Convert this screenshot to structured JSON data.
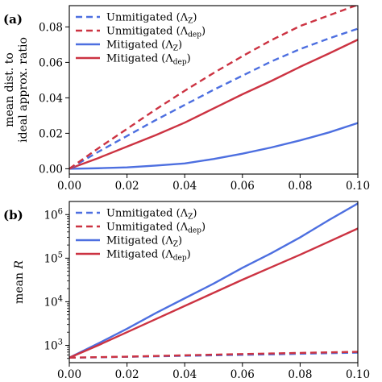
{
  "chart_data": [
    {
      "panel_label": "(a)",
      "type": "line",
      "ylabel_lines": [
        "mean dist. to",
        "ideal approx. ratio"
      ],
      "xlim": [
        0.0,
        0.1
      ],
      "ylim": [
        -0.003,
        0.092
      ],
      "yscale": "linear",
      "xticks": [
        "0.00",
        "0.02",
        "0.04",
        "0.06",
        "0.08",
        "0.10"
      ],
      "yticks": [
        {
          "value": 0.0,
          "label": "0.00"
        },
        {
          "value": 0.02,
          "label": "0.02"
        },
        {
          "value": 0.04,
          "label": "0.04"
        },
        {
          "value": 0.06,
          "label": "0.06"
        },
        {
          "value": 0.08,
          "label": "0.08"
        }
      ],
      "grid": false,
      "legend_position": "top-left",
      "x": [
        0.0,
        0.01,
        0.02,
        0.03,
        0.04,
        0.05,
        0.06,
        0.07,
        0.08,
        0.09,
        0.1
      ],
      "series": [
        {
          "name": "Unmitigated (Λ_Z)",
          "legend_main": "Unmitigated (Λ",
          "legend_sub": "Z",
          "color": "#4d6fe0",
          "dash": true,
          "values": [
            0.0,
            0.0095,
            0.0185,
            0.0275,
            0.036,
            0.0445,
            0.0525,
            0.0605,
            0.0675,
            0.0735,
            0.079
          ]
        },
        {
          "name": "Unmitigated (Λ_dep)",
          "legend_main": "Unmitigated (Λ",
          "legend_sub": "dep",
          "color": "#cc3342",
          "dash": true,
          "values": [
            0.0,
            0.0115,
            0.0225,
            0.0335,
            0.044,
            0.054,
            0.0635,
            0.0725,
            0.0805,
            0.0865,
            0.0925
          ]
        },
        {
          "name": "Mitigated (Λ_Z)",
          "legend_main": "Mitigated (Λ",
          "legend_sub": "Z",
          "color": "#4d6fe0",
          "dash": false,
          "values": [
            0.0,
            0.0003,
            0.0008,
            0.0018,
            0.003,
            0.0055,
            0.0085,
            0.012,
            0.016,
            0.0205,
            0.0258
          ]
        },
        {
          "name": "Mitigated (Λ_dep)",
          "legend_main": "Mitigated (Λ",
          "legend_sub": "dep",
          "color": "#cc3342",
          "dash": false,
          "values": [
            0.0,
            0.006,
            0.0125,
            0.019,
            0.026,
            0.034,
            0.042,
            0.0495,
            0.0575,
            0.065,
            0.0728
          ]
        }
      ]
    },
    {
      "panel_label": "(b)",
      "type": "line",
      "ylabel": "mean R",
      "ylabel_main": "mean ",
      "ylabel_italic": "R",
      "xlim": [
        0.0,
        0.1
      ],
      "ylim": [
        400,
        2000000
      ],
      "yscale": "log",
      "xticks": [
        "0.00",
        "0.02",
        "0.04",
        "0.06",
        "0.08",
        "0.10"
      ],
      "yticks": [
        {
          "value": 1000,
          "base": "10",
          "exp": "3"
        },
        {
          "value": 10000,
          "base": "10",
          "exp": "4"
        },
        {
          "value": 100000,
          "base": "10",
          "exp": "5"
        },
        {
          "value": 1000000,
          "base": "10",
          "exp": "6"
        }
      ],
      "grid": false,
      "legend_position": "top-left",
      "x": [
        0.0,
        0.01,
        0.02,
        0.03,
        0.04,
        0.05,
        0.06,
        0.07,
        0.08,
        0.09,
        0.1
      ],
      "series": [
        {
          "name": "Unmitigated (Λ_Z)",
          "legend_main": "Unmitigated (Λ",
          "legend_sub": "Z",
          "color": "#4d6fe0",
          "dash": true,
          "values": [
            520,
            530,
            545,
            560,
            575,
            590,
            605,
            620,
            640,
            660,
            680
          ]
        },
        {
          "name": "Unmitigated (Λ_dep)",
          "legend_main": "Unmitigated (Λ",
          "legend_sub": "dep",
          "color": "#cc3342",
          "dash": true,
          "values": [
            520,
            535,
            550,
            570,
            590,
            610,
            630,
            650,
            670,
            690,
            710
          ]
        },
        {
          "name": "Mitigated (Λ_Z)",
          "legend_main": "Mitigated (Λ",
          "legend_sub": "Z",
          "color": "#4d6fe0",
          "dash": false,
          "values": [
            520,
            1100,
            2400,
            5500,
            12000,
            26000,
            60000,
            130000,
            300000,
            750000,
            1800000
          ]
        },
        {
          "name": "Mitigated (Λ_dep)",
          "legend_main": "Mitigated (Λ",
          "legend_sub": "dep",
          "color": "#cc3342",
          "dash": false,
          "values": [
            520,
            1000,
            2000,
            4000,
            8000,
            16000,
            32000,
            62000,
            120000,
            240000,
            480000
          ]
        }
      ]
    }
  ]
}
